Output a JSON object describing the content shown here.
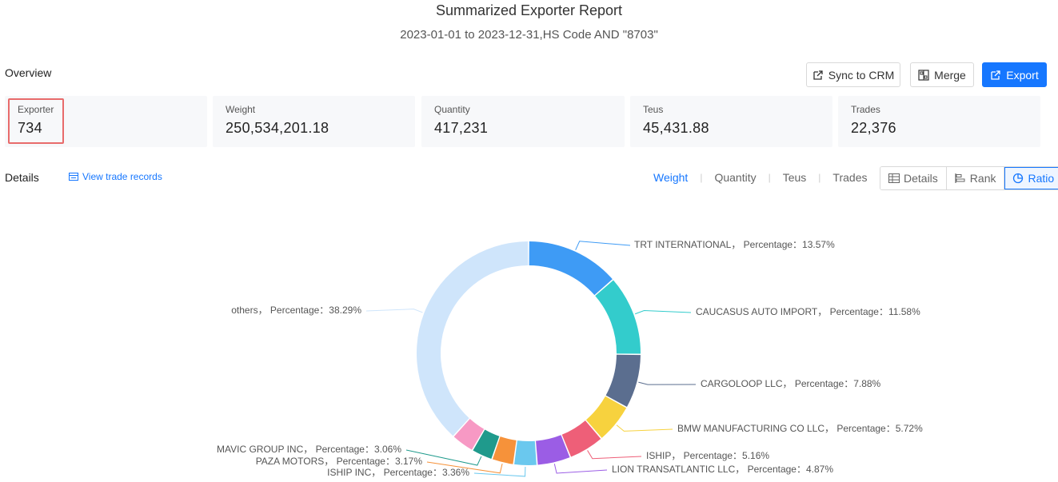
{
  "header": {
    "title": "Summarized Exporter Report",
    "subtitle": "2023-01-01 to 2023-12-31,HS Code AND \"8703\""
  },
  "overview": {
    "label": "Overview",
    "buttons": {
      "sync": "Sync to CRM",
      "merge": "Merge",
      "export": "Export"
    },
    "stats": [
      {
        "label": "Exporter",
        "value": "734"
      },
      {
        "label": "Weight",
        "value": "250,534,201.18"
      },
      {
        "label": "Quantity",
        "value": "417,231"
      },
      {
        "label": "Teus",
        "value": "45,431.88"
      },
      {
        "label": "Trades",
        "value": "22,376"
      }
    ]
  },
  "details": {
    "label": "Details",
    "view_trade_records": "View trade records",
    "metric_tabs": [
      "Weight",
      "Quantity",
      "Teus",
      "Trades"
    ],
    "active_metric": "Weight",
    "view_modes": [
      "Details",
      "Rank",
      "Ratio"
    ],
    "active_view": "Ratio"
  },
  "colors": {
    "accent": "#1677ff",
    "highlight": "#e86b6b"
  },
  "chart_data": {
    "type": "pie",
    "variant": "donut",
    "label_separator": "，Percentage：",
    "slices": [
      {
        "name": "TRT INTERNATIONAL",
        "value": 13.57,
        "label": "TRT INTERNATIONAL， Percentage：13.57%",
        "color": "#3e9bf5"
      },
      {
        "name": "CAUCASUS AUTO IMPORT",
        "value": 11.58,
        "label": "CAUCASUS AUTO IMPORT， Percentage：11.58%",
        "color": "#33cccc"
      },
      {
        "name": "CARGOLOOP LLC",
        "value": 7.88,
        "label": "CARGOLOOP LLC， Percentage：7.88%",
        "color": "#5b6e8f"
      },
      {
        "name": "BMW MANUFACTURING CO LLC",
        "value": 5.72,
        "label": "BMW MANUFACTURING CO LLC， Percentage：5.72%",
        "color": "#f7d23e"
      },
      {
        "name": "ISHIP",
        "value": 5.16,
        "label": "ISHIP， Percentage：5.16%",
        "color": "#ee5f78"
      },
      {
        "name": "LION TRANSATLANTIC LLC",
        "value": 4.87,
        "label": "LION TRANSATLANTIC LLC， Percentage：4.87%",
        "color": "#9b5de5"
      },
      {
        "name": "ISHIP INC",
        "value": 3.36,
        "label": "ISHIP INC， Percentage：3.36%",
        "color": "#6ac8ee"
      },
      {
        "name": "PAZA MOTORS",
        "value": 3.17,
        "label": "PAZA MOTORS， Percentage：3.17%",
        "color": "#f6923a"
      },
      {
        "name": "MAVIC GROUP INC",
        "value": 3.06,
        "label": "MAVIC GROUP INC， Percentage：3.06%",
        "color": "#1f9a8c"
      },
      {
        "name": "(unlabeled)",
        "value": 3.34,
        "label": "",
        "color": "#f799c4"
      },
      {
        "name": "others",
        "value": 38.29,
        "label": "others， Percentage：38.29%",
        "color": "#cfe5fb"
      }
    ]
  }
}
